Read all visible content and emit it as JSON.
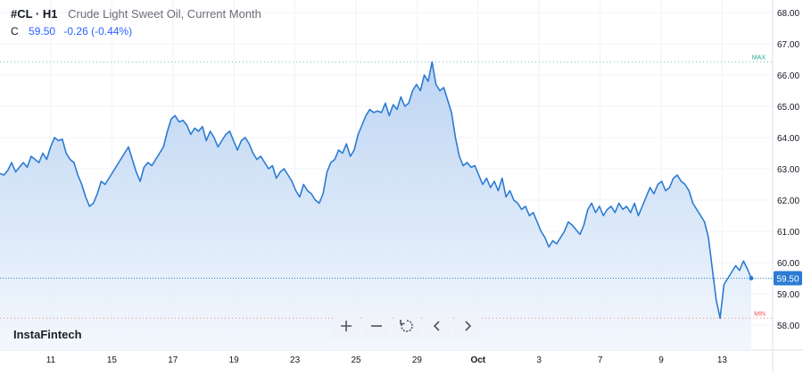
{
  "header": {
    "symbol": "#CL · H1",
    "description": "Crude Light Sweet Oil, Current Month",
    "ohlc_label": "C",
    "close_value": "59.50",
    "change": "-0.26 (-0.44%)"
  },
  "brand": "InstaFintech",
  "toolbar": {
    "zoom_in_icon": "plus-icon",
    "zoom_out_icon": "minus-icon",
    "reset_icon": "reset-icon",
    "scroll_left_icon": "chevron-left-icon",
    "scroll_right_icon": "chevron-right-icon"
  },
  "colors": {
    "line": "#2b7bd3",
    "area_top": "#b9d2f2",
    "area_bottom": "#f2f7fd",
    "price_tag": "#2b7bd3",
    "max_label": "#26a69a",
    "min_label": "#ef5350",
    "grid": "#f0f3fa"
  },
  "chart_data": {
    "type": "area",
    "price_tag": "59.50",
    "max_label": "MAX",
    "min_label": "MIN",
    "y_ticks": [
      "58.00",
      "59.00",
      "60.00",
      "61.00",
      "62.00",
      "63.00",
      "64.00",
      "65.00",
      "66.00",
      "67.00",
      "68.00"
    ],
    "x_ticks": [
      {
        "label": "11",
        "i": 1
      },
      {
        "label": "15",
        "i": 3
      },
      {
        "label": "17",
        "i": 5
      },
      {
        "label": "19",
        "i": 7
      },
      {
        "label": "23",
        "i": 9
      },
      {
        "label": "25",
        "i": 11
      },
      {
        "label": "29",
        "i": 13
      },
      {
        "label": "Oct",
        "i": 15,
        "bold": true
      },
      {
        "label": "3",
        "i": 17
      },
      {
        "label": "7",
        "i": 19
      },
      {
        "label": "9",
        "i": 21
      },
      {
        "label": "13",
        "i": 23
      }
    ],
    "ylim": [
      57.2,
      68.4
    ],
    "max_value": 66.42,
    "min_value": 58.22,
    "last_value": 59.5,
    "series": [
      {
        "values": [
          62.85,
          62.8,
          62.95,
          63.2,
          62.9,
          63.05,
          63.2,
          63.05,
          63.4,
          63.3,
          63.2,
          63.5,
          63.3,
          63.7,
          64.0,
          63.9,
          63.95,
          63.5,
          63.3,
          63.2,
          62.8,
          62.5,
          62.1,
          61.8,
          61.9,
          62.2,
          62.6,
          62.5,
          62.7,
          62.9,
          63.1,
          63.3,
          63.5,
          63.7,
          63.3,
          62.9,
          62.6,
          63.05,
          63.2,
          63.1,
          63.3,
          63.5,
          63.7,
          64.2,
          64.6,
          64.7,
          64.5,
          64.55,
          64.4,
          64.1,
          64.3,
          64.2,
          64.35,
          63.9,
          64.2,
          64.0,
          63.7,
          63.9,
          64.1,
          64.2,
          63.9,
          63.6,
          63.9,
          64.0,
          63.8,
          63.5,
          63.3,
          63.4,
          63.2,
          63.0,
          63.1,
          62.7,
          62.9,
          63.0,
          62.8,
          62.6,
          62.3,
          62.1,
          62.5,
          62.3,
          62.2,
          62.0,
          61.9,
          62.2,
          62.9,
          63.2,
          63.3,
          63.6,
          63.5,
          63.8,
          63.4,
          63.6,
          64.1,
          64.4,
          64.7,
          64.9,
          64.8,
          64.85,
          64.8,
          65.1,
          64.7,
          65.05,
          64.9,
          65.3,
          65.0,
          65.1,
          65.5,
          65.7,
          65.5,
          66.0,
          65.8,
          66.42,
          65.7,
          65.5,
          65.6,
          65.2,
          64.8,
          64.0,
          63.4,
          63.1,
          63.2,
          63.05,
          63.1,
          62.8,
          62.5,
          62.7,
          62.4,
          62.6,
          62.3,
          62.7,
          62.1,
          62.3,
          62.0,
          61.9,
          61.7,
          61.8,
          61.5,
          61.6,
          61.3,
          61.0,
          60.8,
          60.5,
          60.7,
          60.6,
          60.8,
          61.0,
          61.3,
          61.2,
          61.05,
          60.9,
          61.2,
          61.7,
          61.9,
          61.6,
          61.8,
          61.5,
          61.7,
          61.8,
          61.6,
          61.9,
          61.7,
          61.8,
          61.6,
          61.9,
          61.5,
          61.8,
          62.1,
          62.4,
          62.2,
          62.5,
          62.6,
          62.3,
          62.4,
          62.7,
          62.8,
          62.6,
          62.5,
          62.3,
          61.9,
          61.7,
          61.5,
          61.3,
          60.8,
          59.8,
          58.8,
          58.22,
          59.3,
          59.5,
          59.7,
          59.9,
          59.75,
          60.05,
          59.8,
          59.5
        ]
      }
    ]
  }
}
